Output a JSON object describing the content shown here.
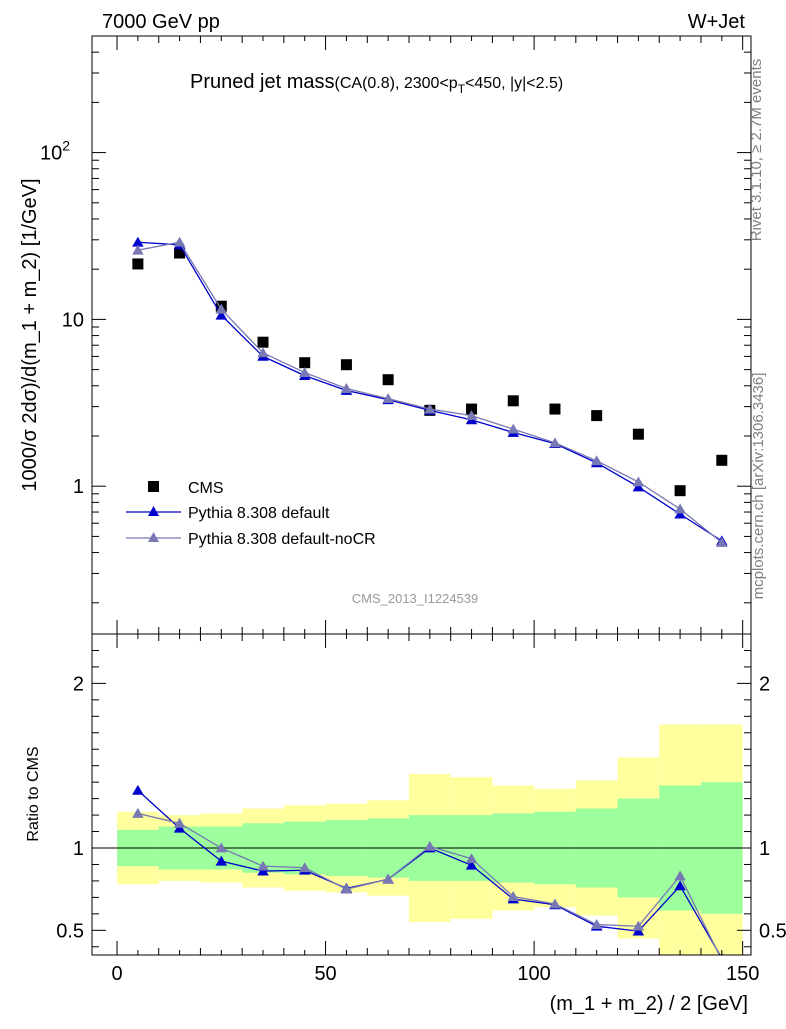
{
  "header": {
    "left": "7000 GeV pp",
    "right": "W+Jet"
  },
  "plot_title": {
    "main": "Pruned jet mass",
    "sub_prefix": "(CA(0.8), 2300<p",
    "sub_subscript": "T",
    "sub_suffix": "<450, |y|<2.5)"
  },
  "side_labels": {
    "rivet": "Rivet 3.1.10, ≥ 2.7M events",
    "mcplots": "mcplots.cern.ch [arXiv:1306.3436]"
  },
  "watermark": "CMS_2013_I1224539",
  "chart_data": [
    {
      "type": "line",
      "panel": "main",
      "ylabel": "1000/σ 2dσ)/d(m_1 + m_2) [1/GeV]",
      "yscale": "log",
      "ylim": [
        0.13,
        500
      ],
      "xlim": [
        -6,
        152
      ],
      "yticks": [
        {
          "value": 1,
          "label": "1"
        },
        {
          "value": 10,
          "label": "10"
        },
        {
          "value": 100,
          "label": "10",
          "sup": "2"
        }
      ],
      "x": [
        5,
        15,
        25,
        35,
        45,
        55,
        65,
        75,
        85,
        95,
        105,
        115,
        125,
        135,
        145
      ],
      "series": [
        {
          "name": "CMS",
          "marker": "square",
          "color": "#000000",
          "values": [
            21.5,
            25.0,
            12.0,
            7.3,
            5.5,
            5.35,
            4.35,
            2.85,
            2.9,
            3.25,
            2.9,
            2.65,
            2.05,
            0.94,
            1.43
          ]
        },
        {
          "name": "Pythia 8.308 default",
          "marker": "triangle",
          "color": "#0000cc",
          "values": [
            29.0,
            28.0,
            10.6,
            6.0,
            4.6,
            3.75,
            3.3,
            2.85,
            2.5,
            2.1,
            1.8,
            1.38,
            0.99,
            0.68,
            0.47
          ]
        },
        {
          "name": "Pythia 8.308 default-noCR",
          "marker": "triangle",
          "color": "#7878b4",
          "values": [
            26.0,
            29.0,
            11.5,
            6.3,
            4.8,
            3.85,
            3.35,
            2.9,
            2.65,
            2.2,
            1.82,
            1.42,
            1.06,
            0.73,
            0.46
          ]
        }
      ],
      "legend": {
        "position": "bottom-left"
      }
    },
    {
      "type": "line",
      "panel": "ratio",
      "ylabel": "Ratio to CMS",
      "xlabel": "(m_1 + m_2) / 2 [GeV]",
      "ylim": [
        0.35,
        2.3
      ],
      "xlim": [
        -6,
        152
      ],
      "yticks": [
        {
          "value": 0.5,
          "label": "0.5"
        },
        {
          "value": 1,
          "label": "1"
        },
        {
          "value": 2,
          "label": "2"
        }
      ],
      "xticks": [
        {
          "value": 0,
          "label": "0"
        },
        {
          "value": 50,
          "label": "50"
        },
        {
          "value": 100,
          "label": "100"
        },
        {
          "value": 150,
          "label": "150"
        }
      ],
      "bins": [
        [
          0,
          10
        ],
        [
          10,
          20
        ],
        [
          20,
          30
        ],
        [
          30,
          40
        ],
        [
          40,
          50
        ],
        [
          50,
          60
        ],
        [
          60,
          70
        ],
        [
          70,
          80
        ],
        [
          80,
          90
        ],
        [
          90,
          100
        ],
        [
          100,
          110
        ],
        [
          110,
          120
        ],
        [
          120,
          130
        ],
        [
          130,
          140
        ],
        [
          140,
          150
        ]
      ],
      "band_inner": [
        [
          0.89,
          1.11
        ],
        [
          0.87,
          1.13
        ],
        [
          0.87,
          1.13
        ],
        [
          0.85,
          1.15
        ],
        [
          0.84,
          1.16
        ],
        [
          0.83,
          1.17
        ],
        [
          0.82,
          1.18
        ],
        [
          0.8,
          1.2
        ],
        [
          0.8,
          1.2
        ],
        [
          0.79,
          1.21
        ],
        [
          0.78,
          1.22
        ],
        [
          0.76,
          1.24
        ],
        [
          0.7,
          1.3
        ],
        [
          0.62,
          1.38
        ],
        [
          0.6,
          1.4
        ]
      ],
      "band_outer": [
        [
          0.78,
          1.22
        ],
        [
          0.8,
          1.2
        ],
        [
          0.79,
          1.21
        ],
        [
          0.76,
          1.24
        ],
        [
          0.74,
          1.26
        ],
        [
          0.73,
          1.27
        ],
        [
          0.71,
          1.29
        ],
        [
          0.55,
          1.45
        ],
        [
          0.57,
          1.43
        ],
        [
          0.62,
          1.38
        ],
        [
          0.64,
          1.36
        ],
        [
          0.59,
          1.41
        ],
        [
          0.45,
          1.55
        ],
        [
          0.25,
          1.75
        ],
        [
          0.25,
          1.75
        ]
      ],
      "series": [
        {
          "name": "Pythia 8.308 default",
          "color": "#0000cc",
          "values": [
            1.35,
            1.12,
            0.92,
            0.86,
            0.865,
            0.755,
            0.81,
            1.0,
            0.895,
            0.69,
            0.655,
            0.525,
            0.495,
            0.77,
            0.33
          ]
        },
        {
          "name": "Pythia 8.308 default-noCR",
          "color": "#7878b4",
          "values": [
            1.21,
            1.15,
            1.0,
            0.89,
            0.88,
            0.75,
            0.81,
            1.01,
            0.935,
            0.705,
            0.66,
            0.535,
            0.525,
            0.83,
            0.32
          ]
        }
      ]
    }
  ]
}
